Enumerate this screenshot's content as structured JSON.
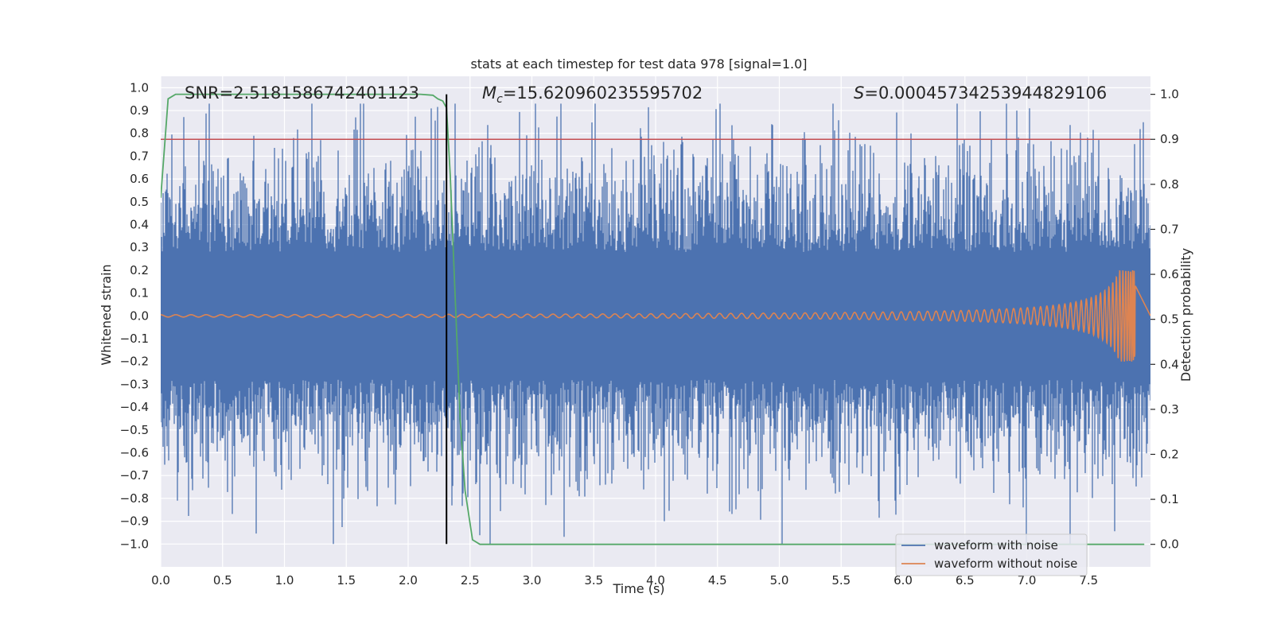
{
  "chart_data": {
    "type": "line",
    "title": "stats at each timestep for test data 978 [signal=1.0]",
    "xlabel": "Time (s)",
    "ylabel": "Whitened strain",
    "y2label": "Detection probability",
    "xlim": [
      0.0,
      8.0
    ],
    "ylim": [
      -1.1,
      1.05
    ],
    "y2lim": [
      -0.05,
      1.04
    ],
    "x_ticks": [
      0.0,
      0.5,
      1.0,
      1.5,
      2.0,
      2.5,
      3.0,
      3.5,
      4.0,
      4.5,
      5.0,
      5.5,
      6.0,
      6.5,
      7.0,
      7.5
    ],
    "x_tick_labels": [
      "0.0",
      "0.5",
      "1.0",
      "1.5",
      "2.0",
      "2.5",
      "3.0",
      "3.5",
      "4.0",
      "4.5",
      "5.0",
      "5.5",
      "6.0",
      "6.5",
      "7.0",
      "7.5"
    ],
    "y_ticks": [
      1.0,
      0.9,
      0.8,
      0.7,
      0.6,
      0.5,
      0.4,
      0.3,
      0.2,
      0.1,
      0.0,
      -0.1,
      -0.2,
      -0.3,
      -0.4,
      -0.5,
      -0.6,
      -0.7,
      -0.8,
      -0.9,
      -1.0
    ],
    "y_tick_labels": [
      "1.0",
      "0.9",
      "0.8",
      "0.7",
      "0.6",
      "0.5",
      "0.4",
      "0.3",
      "0.2",
      "0.1",
      "0.0",
      "−0.1",
      "−0.2",
      "−0.3",
      "−0.4",
      "−0.5",
      "−0.6",
      "−0.7",
      "−0.8",
      "−0.9",
      "−1.0"
    ],
    "y2_ticks": [
      1.0,
      0.9,
      0.8,
      0.7,
      0.6,
      0.5,
      0.4,
      0.3,
      0.2,
      0.1,
      0.0
    ],
    "y2_tick_labels": [
      "1.0",
      "0.9",
      "0.8",
      "0.7",
      "0.6",
      "0.5",
      "0.4",
      "0.3",
      "0.2",
      "0.1",
      "0.0"
    ],
    "annotations": {
      "snr_prefix": "SNR=",
      "snr_value": "2.5181586742401123",
      "mc_symbol": "M",
      "mc_subscript": "c",
      "mc_value": "=15.620960235595702",
      "s_symbol": "S",
      "s_value": "=0.00045734253944829106"
    },
    "threshold": {
      "value": 0.9,
      "axis": "right",
      "color": "#c44e52"
    },
    "vertical_marker": {
      "x": 2.31,
      "color": "#000000"
    },
    "series": [
      {
        "name": "waveform with noise",
        "color": "#4c72b0",
        "axis": "left",
        "description_stats": {
          "x_start": 0.0,
          "x_end": 8.0,
          "envelope_abs": 0.45,
          "peak_max": 0.93,
          "peak_min": -1.0
        }
      },
      {
        "name": "waveform without noise",
        "color": "#dd8452",
        "axis": "left",
        "chirp": {
          "x_start": 0.0,
          "merger_time": 7.88,
          "peak_amplitude": 0.2,
          "early_amplitude": 0.005
        }
      },
      {
        "name": "detection probability",
        "color": "#55a868",
        "axis": "right",
        "x": [
          0.0,
          0.06,
          0.12,
          0.2,
          0.5,
          1.0,
          1.5,
          2.0,
          2.1,
          2.2,
          2.24,
          2.28,
          2.31,
          2.34,
          2.38,
          2.42,
          2.46,
          2.52,
          2.58,
          3.0,
          4.0,
          5.0,
          6.0,
          7.0,
          7.95
        ],
        "values": [
          0.77,
          0.99,
          1.0,
          1.0,
          1.0,
          1.0,
          1.0,
          1.0,
          1.0,
          0.998,
          0.99,
          0.985,
          0.97,
          0.82,
          0.55,
          0.28,
          0.12,
          0.01,
          0.0,
          0.0,
          0.0,
          0.0,
          0.0,
          0.0,
          0.0
        ]
      }
    ],
    "legend": {
      "position": "lower-right",
      "entries": [
        {
          "label": "waveform with noise",
          "color": "#4c72b0"
        },
        {
          "label": "waveform without noise",
          "color": "#dd8452"
        }
      ]
    },
    "style": {
      "background": "#eaeaf2",
      "grid": true,
      "grid_color": "#ffffff"
    }
  }
}
